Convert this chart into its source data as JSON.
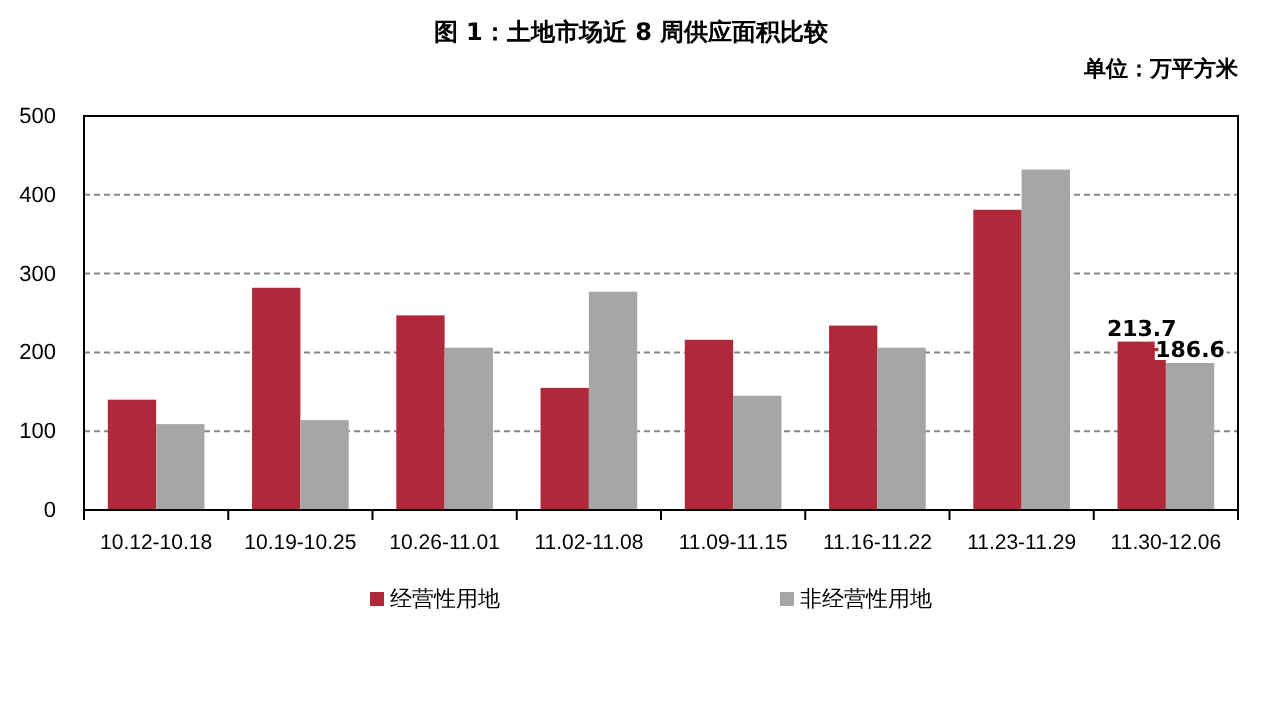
{
  "chart_data": {
    "type": "bar",
    "title": "图 1：土地市场近 8 周供应面积比较",
    "annotations": [
      "单位：万平方米"
    ],
    "categories": [
      "10.12-10.18",
      "10.19-10.25",
      "10.26-11.01",
      "11.02-11.08",
      "11.09-11.15",
      "11.16-11.22",
      "11.23-11.29",
      "11.30-12.06"
    ],
    "series": [
      {
        "name": "经营性用地",
        "color": "#b0293a",
        "values": [
          140,
          282,
          247,
          155,
          216,
          234,
          381,
          213.7
        ],
        "value_labels": [
          null,
          null,
          null,
          null,
          null,
          null,
          null,
          "213.7"
        ]
      },
      {
        "name": "非经营性用地",
        "color": "#a6a6a6",
        "values": [
          109,
          114,
          206,
          277,
          145,
          206,
          432,
          186.6
        ],
        "value_labels": [
          null,
          null,
          null,
          null,
          null,
          null,
          null,
          "186.6"
        ]
      }
    ],
    "ylim": [
      0,
      500
    ],
    "yticks": [
      0,
      100,
      200,
      300,
      400,
      500
    ],
    "grid": "y",
    "legend": "bottom"
  }
}
